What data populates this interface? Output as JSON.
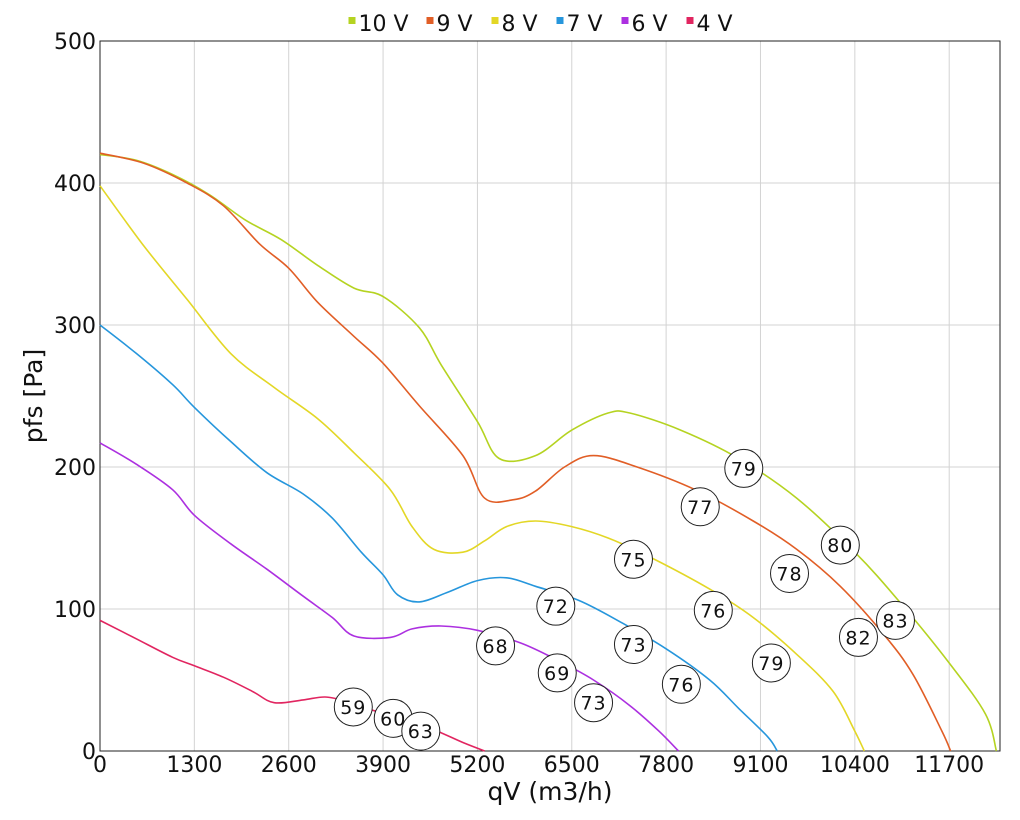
{
  "chart_data": {
    "type": "line",
    "xlabel": "qV (m3/h)",
    "ylabel": "pfs [Pa]",
    "xlim": [
      0,
      12400
    ],
    "ylim": [
      0,
      500
    ],
    "x_ticks": [
      0,
      1300,
      2600,
      3900,
      5200,
      6500,
      7800,
      9100,
      10400,
      11700
    ],
    "y_ticks": [
      0,
      100,
      200,
      300,
      400,
      500
    ],
    "grid": true,
    "legend_position": "top-center",
    "series": [
      {
        "name": "10 V",
        "color": "#b5d321",
        "points": [
          [
            0,
            420
          ],
          [
            500,
            416
          ],
          [
            1000,
            406
          ],
          [
            1500,
            392
          ],
          [
            2000,
            374
          ],
          [
            2500,
            360
          ],
          [
            3000,
            342
          ],
          [
            3500,
            326
          ],
          [
            3900,
            320
          ],
          [
            4400,
            298
          ],
          [
            4700,
            272
          ],
          [
            5200,
            232
          ],
          [
            5500,
            206
          ],
          [
            6000,
            208
          ],
          [
            6500,
            226
          ],
          [
            7000,
            238
          ],
          [
            7300,
            238
          ],
          [
            8000,
            226
          ],
          [
            8800,
            206
          ],
          [
            9600,
            178
          ],
          [
            10400,
            140
          ],
          [
            11000,
            106
          ],
          [
            11700,
            62
          ],
          [
            12200,
            26
          ],
          [
            12350,
            0
          ]
        ]
      },
      {
        "name": "9 V",
        "color": "#e15e26",
        "points": [
          [
            0,
            421
          ],
          [
            600,
            414
          ],
          [
            1200,
            400
          ],
          [
            1700,
            384
          ],
          [
            2200,
            357
          ],
          [
            2600,
            340
          ],
          [
            3000,
            316
          ],
          [
            3500,
            292
          ],
          [
            3900,
            273
          ],
          [
            4400,
            243
          ],
          [
            5000,
            208
          ],
          [
            5300,
            178
          ],
          [
            5700,
            177
          ],
          [
            6000,
            183
          ],
          [
            6400,
            200
          ],
          [
            6800,
            208
          ],
          [
            7400,
            200
          ],
          [
            8200,
            184
          ],
          [
            9000,
            162
          ],
          [
            9600,
            142
          ],
          [
            10200,
            116
          ],
          [
            10800,
            82
          ],
          [
            11200,
            54
          ],
          [
            11600,
            14
          ],
          [
            11720,
            0
          ]
        ]
      },
      {
        "name": "8 V",
        "color": "#e3d726",
        "points": [
          [
            0,
            398
          ],
          [
            600,
            356
          ],
          [
            1200,
            318
          ],
          [
            1800,
            280
          ],
          [
            2400,
            256
          ],
          [
            3000,
            234
          ],
          [
            3500,
            210
          ],
          [
            4000,
            184
          ],
          [
            4300,
            158
          ],
          [
            4600,
            142
          ],
          [
            5000,
            140
          ],
          [
            5300,
            148
          ],
          [
            5600,
            158
          ],
          [
            6000,
            162
          ],
          [
            6500,
            158
          ],
          [
            7000,
            150
          ],
          [
            7600,
            136
          ],
          [
            8400,
            114
          ],
          [
            9000,
            94
          ],
          [
            9600,
            68
          ],
          [
            10100,
            42
          ],
          [
            10400,
            14
          ],
          [
            10530,
            0
          ]
        ]
      },
      {
        "name": "7 V",
        "color": "#2696dc",
        "points": [
          [
            0,
            300
          ],
          [
            500,
            280
          ],
          [
            1000,
            258
          ],
          [
            1300,
            242
          ],
          [
            1800,
            218
          ],
          [
            2300,
            196
          ],
          [
            2800,
            181
          ],
          [
            3200,
            164
          ],
          [
            3600,
            140
          ],
          [
            3900,
            124
          ],
          [
            4100,
            110
          ],
          [
            4400,
            105
          ],
          [
            4800,
            112
          ],
          [
            5200,
            120
          ],
          [
            5600,
            122
          ],
          [
            6000,
            116
          ],
          [
            6600,
            106
          ],
          [
            7200,
            90
          ],
          [
            7800,
            72
          ],
          [
            8400,
            50
          ],
          [
            8800,
            30
          ],
          [
            9200,
            10
          ],
          [
            9330,
            0
          ]
        ]
      },
      {
        "name": "6 V",
        "color": "#ac30e0",
        "points": [
          [
            0,
            217
          ],
          [
            500,
            202
          ],
          [
            1000,
            184
          ],
          [
            1300,
            166
          ],
          [
            1800,
            146
          ],
          [
            2300,
            128
          ],
          [
            2800,
            109
          ],
          [
            3200,
            94
          ],
          [
            3500,
            81
          ],
          [
            4000,
            80
          ],
          [
            4300,
            86
          ],
          [
            4700,
            88
          ],
          [
            5200,
            85
          ],
          [
            5800,
            76
          ],
          [
            6300,
            64
          ],
          [
            6800,
            50
          ],
          [
            7300,
            32
          ],
          [
            7700,
            14
          ],
          [
            7970,
            0
          ]
        ]
      },
      {
        "name": "4 V",
        "color": "#e12560",
        "points": [
          [
            0,
            92
          ],
          [
            500,
            79
          ],
          [
            1000,
            66
          ],
          [
            1300,
            60
          ],
          [
            1700,
            52
          ],
          [
            2100,
            42
          ],
          [
            2400,
            34
          ],
          [
            2800,
            36
          ],
          [
            3100,
            38
          ],
          [
            3400,
            35
          ],
          [
            3800,
            28
          ],
          [
            4200,
            22
          ],
          [
            4600,
            15
          ],
          [
            5000,
            6
          ],
          [
            5300,
            0
          ]
        ]
      }
    ],
    "annotations": [
      {
        "text": "79",
        "x": 8870,
        "y": 199
      },
      {
        "text": "77",
        "x": 8270,
        "y": 172
      },
      {
        "text": "80",
        "x": 10200,
        "y": 145
      },
      {
        "text": "75",
        "x": 7350,
        "y": 135
      },
      {
        "text": "78",
        "x": 9500,
        "y": 125
      },
      {
        "text": "72",
        "x": 6280,
        "y": 102
      },
      {
        "text": "76",
        "x": 8450,
        "y": 99
      },
      {
        "text": "83",
        "x": 10960,
        "y": 92
      },
      {
        "text": "82",
        "x": 10450,
        "y": 80
      },
      {
        "text": "68",
        "x": 5450,
        "y": 74
      },
      {
        "text": "73",
        "x": 7350,
        "y": 75
      },
      {
        "text": "79",
        "x": 9250,
        "y": 62
      },
      {
        "text": "69",
        "x": 6300,
        "y": 55
      },
      {
        "text": "76",
        "x": 8010,
        "y": 47
      },
      {
        "text": "73",
        "x": 6800,
        "y": 34
      },
      {
        "text": "59",
        "x": 3490,
        "y": 31
      },
      {
        "text": "60",
        "x": 4040,
        "y": 23
      },
      {
        "text": "63",
        "x": 4420,
        "y": 14
      }
    ]
  }
}
